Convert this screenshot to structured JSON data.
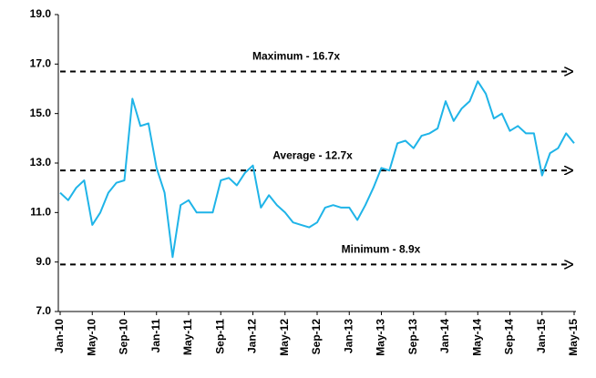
{
  "chart_data": {
    "type": "line",
    "categories": [
      "Jan-10",
      null,
      null,
      null,
      "May-10",
      null,
      null,
      null,
      "Sep-10",
      null,
      null,
      null,
      "Jan-11",
      null,
      null,
      null,
      "May-11",
      null,
      null,
      null,
      "Sep-11",
      null,
      null,
      null,
      "Jan-12",
      null,
      null,
      null,
      "May-12",
      null,
      null,
      null,
      "Sep-12",
      null,
      null,
      null,
      "Jan-13",
      null,
      null,
      null,
      "May-13",
      null,
      null,
      null,
      "Sep-13",
      null,
      null,
      null,
      "Jan-14",
      null,
      null,
      null,
      "May-14",
      null,
      null,
      null,
      "Sep-14",
      null,
      null,
      null,
      "Jan-15",
      null,
      null,
      null,
      "May-15"
    ],
    "values": [
      11.8,
      11.5,
      12.0,
      12.3,
      10.5,
      11.0,
      11.8,
      12.2,
      12.3,
      15.6,
      14.5,
      14.6,
      12.8,
      11.8,
      9.2,
      11.3,
      11.5,
      11.0,
      11.0,
      11.0,
      12.3,
      12.4,
      12.1,
      12.6,
      12.9,
      11.2,
      11.7,
      11.3,
      11.0,
      10.6,
      10.5,
      10.4,
      10.6,
      11.2,
      11.3,
      11.2,
      11.2,
      10.7,
      11.3,
      12.0,
      12.8,
      12.7,
      13.8,
      13.9,
      13.6,
      14.1,
      14.2,
      14.4,
      15.5,
      14.7,
      15.2,
      15.5,
      16.3,
      15.8,
      14.8,
      15.0,
      14.3,
      14.5,
      14.2,
      14.2,
      12.5,
      13.4,
      13.6,
      14.2,
      13.8
    ],
    "color": "#1fb4e8",
    "ylim": [
      7,
      19
    ],
    "yticks": [
      {
        "value": 7,
        "label": "7.0"
      },
      {
        "value": 9,
        "label": "9.0"
      },
      {
        "value": 11,
        "label": "11.0"
      },
      {
        "value": 13,
        "label": "13.0"
      },
      {
        "value": 15,
        "label": "15.0"
      },
      {
        "value": 17,
        "label": "17.0"
      },
      {
        "value": 19,
        "label": "19.0"
      }
    ],
    "reference_lines": [
      {
        "label": "Maximum - 16.7x",
        "value": 16.7
      },
      {
        "label": "Average - 12.7x",
        "value": 12.7
      },
      {
        "label": "Minimum - 8.9x",
        "value": 8.9
      }
    ],
    "grid": false
  }
}
